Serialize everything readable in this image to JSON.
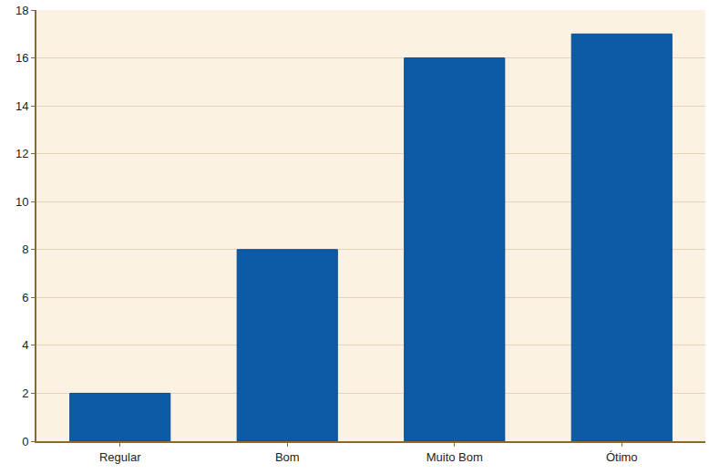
{
  "chart_data": {
    "type": "bar",
    "categories": [
      "Regular",
      "Bom",
      "Muito Bom",
      "Ótimo"
    ],
    "values": [
      2,
      8,
      16,
      17
    ],
    "color": "#0d5aa7",
    "ylim": [
      0,
      18
    ],
    "yticks": [
      0,
      2,
      4,
      6,
      8,
      10,
      12,
      14,
      16,
      18
    ],
    "grid": true
  }
}
